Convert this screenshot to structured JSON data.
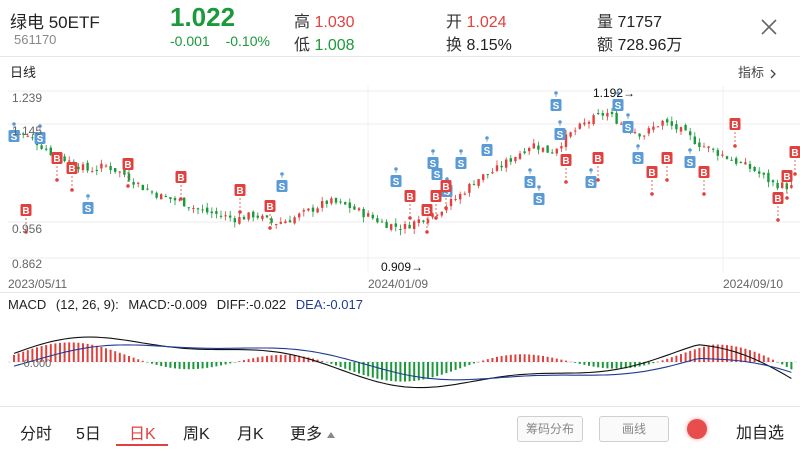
{
  "header": {
    "name": "绿电 50ETF",
    "code": "561170",
    "price": "1.022",
    "change": "-0.001",
    "change_pct": "-0.10%",
    "high_label": "高",
    "high": "1.030",
    "low_label": "低",
    "low": "1.008",
    "open_label": "开",
    "open": "1.024",
    "turnover_label": "换",
    "turnover": "8.15%",
    "volume_label": "量",
    "volume": "71757",
    "amount_label": "额",
    "amount": "728.96万"
  },
  "kline": {
    "section_label": "日线",
    "indicator_button": "指标",
    "y_ticks": [
      "1.239",
      "1.145",
      "0.956",
      "0.862"
    ],
    "x_ticks": [
      "2023/05/11",
      "2024/01/09",
      "2024/09/10"
    ],
    "max_annotation": "1.192→",
    "min_annotation": "0.909→"
  },
  "macd": {
    "name": "MACD",
    "params": "(12, 26, 9):",
    "macd_label": "MACD:-0.009",
    "diff_label": "DIFF:-0.022",
    "dea_label": "DEA:-0.017",
    "zero_label": "-0.000"
  },
  "tabs": {
    "items": [
      "分时",
      "5日",
      "日K",
      "周K",
      "月K",
      "更多"
    ],
    "active": "日K",
    "chip_distribution": "筹码分布",
    "draw_line": "画线",
    "add_watchlist": "加自选"
  },
  "colors": {
    "up": "#e0413e",
    "down": "#1a9a3a",
    "buy": "#e0413e",
    "sell": "#5b9bd5",
    "diff": "#111111",
    "dea": "#1f3a93"
  },
  "chart_data": {
    "type": "candlestick",
    "x": [
      "2023/05/11",
      "2024/01/09",
      "2024/09/10"
    ],
    "close_approx": [
      1.15,
      1.13,
      1.1,
      1.08,
      1.06,
      1.07,
      1.05,
      1.02,
      1.0,
      0.99,
      0.97,
      0.96,
      0.95,
      0.96,
      0.94,
      0.95,
      0.97,
      0.99,
      0.98,
      0.96,
      0.94,
      0.93,
      0.95,
      0.97,
      1.0,
      1.04,
      1.06,
      1.09,
      1.12,
      1.1,
      1.14,
      1.17,
      1.19,
      1.16,
      1.14,
      1.17,
      1.15,
      1.12,
      1.1,
      1.08,
      1.06,
      1.03,
      1.022
    ],
    "ylim": [
      0.862,
      1.239
    ],
    "max": 1.192,
    "min": 0.909,
    "grid": true,
    "markers": {
      "buy": "B",
      "sell": "S"
    }
  }
}
